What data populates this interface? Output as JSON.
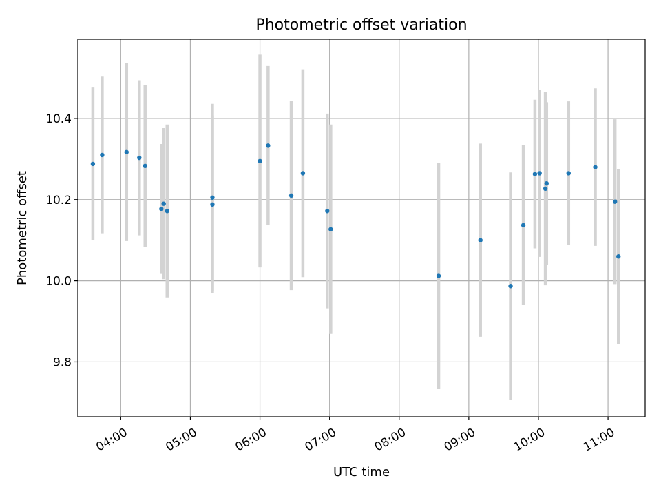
{
  "chart_data": {
    "type": "scatter",
    "title": "Photometric offset variation",
    "xlabel": "UTC time",
    "ylabel": "Photometric offset",
    "x_tick_labels": [
      "04:00",
      "05:00",
      "06:00",
      "07:00",
      "08:00",
      "09:00",
      "10:00",
      "11:00"
    ],
    "y_tick_labels": [
      "9.8",
      "10.0",
      "10.2",
      "10.4"
    ],
    "y_ticks": [
      9.8,
      10.0,
      10.2,
      10.4
    ],
    "xlim": [
      "03:23",
      "11:32"
    ],
    "ylim": [
      9.665,
      10.595
    ],
    "grid": true,
    "error_bar_color": "#d3d3d3",
    "marker_color": "#1f77b4",
    "points": [
      {
        "x": "03:36",
        "y": 10.288,
        "err": 0.188
      },
      {
        "x": "03:44",
        "y": 10.31,
        "err": 0.193
      },
      {
        "x": "04:05",
        "y": 10.317,
        "err": 0.219
      },
      {
        "x": "04:16",
        "y": 10.303,
        "err": 0.191
      },
      {
        "x": "04:21",
        "y": 10.283,
        "err": 0.199
      },
      {
        "x": "04:35",
        "y": 10.177,
        "err": 0.16
      },
      {
        "x": "04:37",
        "y": 10.19,
        "err": 0.186
      },
      {
        "x": "04:40",
        "y": 10.172,
        "err": 0.213
      },
      {
        "x": "05:19",
        "y": 10.205,
        "err": 0.231
      },
      {
        "x": "05:19",
        "y": 10.188,
        "err": 0.219
      },
      {
        "x": "06:00",
        "y": 10.295,
        "err": 0.262
      },
      {
        "x": "06:07",
        "y": 10.333,
        "err": 0.196
      },
      {
        "x": "06:27",
        "y": 10.21,
        "err": 0.233
      },
      {
        "x": "06:37",
        "y": 10.265,
        "err": 0.256
      },
      {
        "x": "06:58",
        "y": 10.172,
        "err": 0.24
      },
      {
        "x": "07:01",
        "y": 10.127,
        "err": 0.258
      },
      {
        "x": "08:34",
        "y": 10.012,
        "err": 0.278
      },
      {
        "x": "09:10",
        "y": 10.1,
        "err": 0.238
      },
      {
        "x": "09:36",
        "y": 9.987,
        "err": 0.28
      },
      {
        "x": "09:47",
        "y": 10.137,
        "err": 0.197
      },
      {
        "x": "09:57",
        "y": 10.263,
        "err": 0.183
      },
      {
        "x": "10:01",
        "y": 10.265,
        "err": 0.206
      },
      {
        "x": "10:06",
        "y": 10.227,
        "err": 0.238
      },
      {
        "x": "10:07",
        "y": 10.24,
        "err": 0.2
      },
      {
        "x": "10:26",
        "y": 10.265,
        "err": 0.177
      },
      {
        "x": "10:49",
        "y": 10.28,
        "err": 0.194
      },
      {
        "x": "11:06",
        "y": 10.195,
        "err": 0.203
      },
      {
        "x": "11:09",
        "y": 10.06,
        "err": 0.216
      }
    ]
  }
}
